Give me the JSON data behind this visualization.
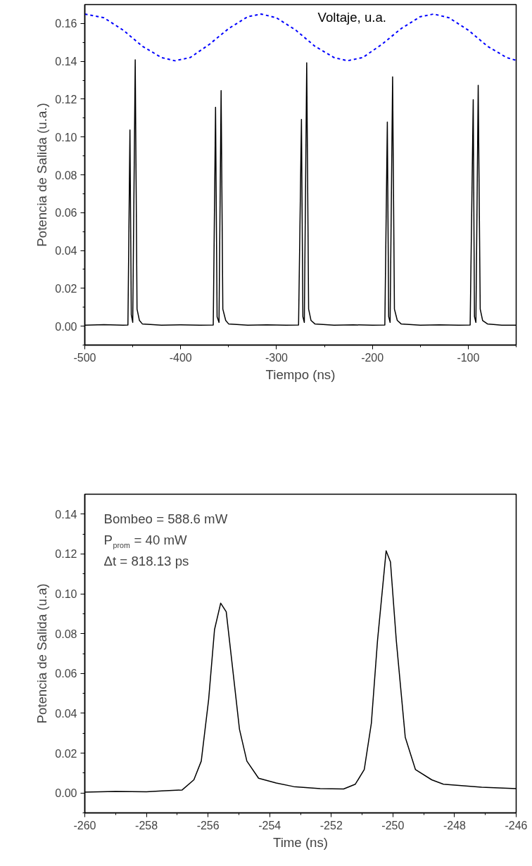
{
  "chart_data": [
    {
      "type": "line",
      "xlabel": "Tiempo (ns)",
      "ylabel": "Potencia de Salida (u.a.)",
      "xlim": [
        -500,
        -50
      ],
      "ylim": [
        -0.01,
        0.17
      ],
      "xticks": [
        {
          "value": -500,
          "label": "-500"
        },
        {
          "value": -450,
          "label": null
        },
        {
          "value": -400,
          "label": "-400"
        },
        {
          "value": -350,
          "label": null
        },
        {
          "value": -300,
          "label": "-300"
        },
        {
          "value": -250,
          "label": null
        },
        {
          "value": -200,
          "label": "-200"
        },
        {
          "value": -150,
          "label": null
        },
        {
          "value": -100,
          "label": "-100"
        },
        {
          "value": -50,
          "label": null
        }
      ],
      "yticks": [
        {
          "value": -0.01,
          "label": null
        },
        {
          "value": 0,
          "label": "0.00"
        },
        {
          "value": 0.01,
          "label": null
        },
        {
          "value": 0.02,
          "label": "0.02"
        },
        {
          "value": 0.03,
          "label": null
        },
        {
          "value": 0.04,
          "label": "0.04"
        },
        {
          "value": 0.05,
          "label": null
        },
        {
          "value": 0.06,
          "label": "0.06"
        },
        {
          "value": 0.07,
          "label": null
        },
        {
          "value": 0.08,
          "label": "0.08"
        },
        {
          "value": 0.09,
          "label": null
        },
        {
          "value": 0.1,
          "label": "0.10"
        },
        {
          "value": 0.11,
          "label": null
        },
        {
          "value": 0.12,
          "label": "0.12"
        },
        {
          "value": 0.13,
          "label": null
        },
        {
          "value": 0.14,
          "label": "0.14"
        },
        {
          "value": 0.15,
          "label": null
        },
        {
          "value": 0.16,
          "label": "0.16"
        }
      ],
      "grid": false,
      "series": [
        {
          "color": "#000000",
          "line_style": "solid",
          "x": [
            -500,
            -480,
            -460,
            -455,
            -452.9,
            -451.5,
            -450,
            -447.4,
            -445.5,
            -443,
            -440,
            -420,
            -400,
            -380,
            -366,
            -363.6,
            -362,
            -360,
            -357.8,
            -356,
            -353,
            -350,
            -330,
            -310,
            -290,
            -277,
            -274,
            -272.5,
            -271,
            -268.5,
            -266.5,
            -264,
            -260,
            -240,
            -220,
            -200,
            -187,
            -184.4,
            -183,
            -181.5,
            -178.9,
            -177,
            -174,
            -170,
            -150,
            -130,
            -110,
            -98,
            -94.8,
            -93.5,
            -92,
            -89.6,
            -87.5,
            -85,
            -80,
            -65,
            -50
          ],
          "values": [
            0.0005,
            0.0008,
            0.0005,
            0.0006,
            0.1037,
            0.006,
            0.002,
            0.1408,
            0.009,
            0.003,
            0.0012,
            0.0005,
            0.0007,
            0.0005,
            0.0006,
            0.1157,
            0.005,
            0.002,
            0.1245,
            0.009,
            0.003,
            0.0012,
            0.0005,
            0.0007,
            0.0005,
            0.0006,
            0.1093,
            0.005,
            0.002,
            0.1392,
            0.009,
            0.003,
            0.0012,
            0.0005,
            0.0007,
            0.0005,
            0.0006,
            0.1079,
            0.005,
            0.002,
            0.1318,
            0.009,
            0.003,
            0.0012,
            0.0005,
            0.0007,
            0.0005,
            0.0006,
            0.1197,
            0.005,
            0.002,
            0.1273,
            0.009,
            0.003,
            0.0012,
            0.0005,
            0.0005
          ]
        },
        {
          "name": "Voltaje, u.a.",
          "color": "#0000ff",
          "line_style": "dashed",
          "x": [
            -500,
            -480,
            -460,
            -440,
            -420,
            -406,
            -390,
            -370,
            -350,
            -330,
            -316,
            -300,
            -280,
            -260,
            -240,
            -226,
            -210,
            -190,
            -170,
            -150,
            -136,
            -120,
            -100,
            -80,
            -60,
            -50
          ],
          "values": [
            0.165,
            0.163,
            0.1565,
            0.148,
            0.142,
            0.1403,
            0.142,
            0.149,
            0.1573,
            0.1636,
            0.165,
            0.163,
            0.1565,
            0.148,
            0.142,
            0.1403,
            0.142,
            0.149,
            0.1573,
            0.1636,
            0.165,
            0.163,
            0.1565,
            0.148,
            0.142,
            0.1405
          ]
        }
      ]
    },
    {
      "type": "line",
      "xlabel": "Time (ns)",
      "ylabel": "Potencia de Salida (u.a)",
      "xlim": [
        -260,
        -246
      ],
      "ylim": [
        -0.01,
        0.15
      ],
      "xticks": [
        {
          "value": -260,
          "label": "-260"
        },
        {
          "value": -259,
          "label": null
        },
        {
          "value": -258,
          "label": "-258"
        },
        {
          "value": -257,
          "label": null
        },
        {
          "value": -256,
          "label": "-256"
        },
        {
          "value": -255,
          "label": null
        },
        {
          "value": -254,
          "label": "-254"
        },
        {
          "value": -253,
          "label": null
        },
        {
          "value": -252,
          "label": "-252"
        },
        {
          "value": -251,
          "label": null
        },
        {
          "value": -250,
          "label": "-250"
        },
        {
          "value": -249,
          "label": null
        },
        {
          "value": -248,
          "label": "-248"
        },
        {
          "value": -247,
          "label": null
        },
        {
          "value": -246,
          "label": "-246"
        }
      ],
      "yticks": [
        {
          "value": -0.01,
          "label": null
        },
        {
          "value": 0,
          "label": "0.00"
        },
        {
          "value": 0.01,
          "label": null
        },
        {
          "value": 0.02,
          "label": "0.02"
        },
        {
          "value": 0.03,
          "label": null
        },
        {
          "value": 0.04,
          "label": "0.04"
        },
        {
          "value": 0.05,
          "label": null
        },
        {
          "value": 0.06,
          "label": "0.06"
        },
        {
          "value": 0.07,
          "label": null
        },
        {
          "value": 0.08,
          "label": "0.08"
        },
        {
          "value": 0.09,
          "label": null
        },
        {
          "value": 0.1,
          "label": "0.10"
        },
        {
          "value": 0.11,
          "label": null
        },
        {
          "value": 0.12,
          "label": "0.12"
        },
        {
          "value": 0.13,
          "label": null
        },
        {
          "value": 0.14,
          "label": "0.14"
        }
      ],
      "grid": false,
      "annotations": [
        "Bombeo = 588.6 mW",
        "P$_{prom}$ = 40 mW",
        "Δt = 818.13 ps"
      ],
      "series": [
        {
          "color": "#000000",
          "line_style": "solid",
          "x": [
            -260,
            -259,
            -258,
            -257.5,
            -256.84,
            -256.46,
            -256.22,
            -255.98,
            -255.79,
            -255.59,
            -255.41,
            -255.22,
            -254.98,
            -254.74,
            -254.36,
            -253.79,
            -253.22,
            -252.36,
            -251.6,
            -251.22,
            -250.93,
            -250.7,
            -250.5,
            -250.22,
            -250.08,
            -249.89,
            -249.6,
            -249.27,
            -248.74,
            -248.36,
            -247.12,
            -246
          ],
          "values": [
            0.0004,
            0.0008,
            0.0006,
            0.001,
            0.0015,
            0.0066,
            0.016,
            0.047,
            0.082,
            0.0953,
            0.091,
            0.065,
            0.032,
            0.016,
            0.0074,
            0.005,
            0.0032,
            0.0022,
            0.002,
            0.0044,
            0.0118,
            0.035,
            0.0765,
            0.1216,
            0.116,
            0.0765,
            0.028,
            0.0118,
            0.0066,
            0.0044,
            0.0029,
            0.0022
          ]
        }
      ]
    }
  ]
}
